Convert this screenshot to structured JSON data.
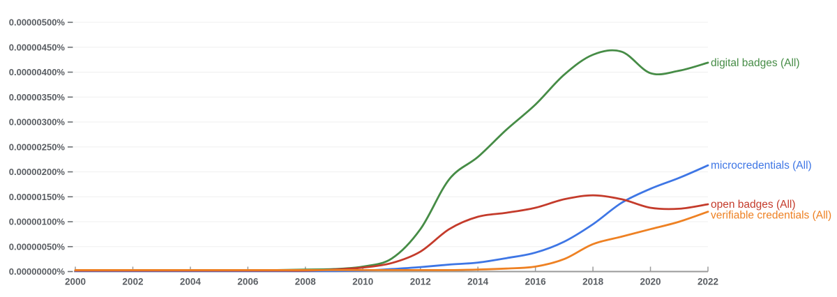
{
  "chart_data": {
    "type": "line",
    "title": "",
    "xlabel": "",
    "ylabel": "",
    "grid": true,
    "legend_position": "right-of-line-ends",
    "x": [
      2000,
      2001,
      2002,
      2003,
      2004,
      2005,
      2006,
      2007,
      2008,
      2009,
      2010,
      2011,
      2012,
      2013,
      2014,
      2015,
      2016,
      2017,
      2018,
      2019,
      2020,
      2021,
      2022
    ],
    "x_tick_labels": [
      "2000",
      "2002",
      "2004",
      "2006",
      "2008",
      "2010",
      "2012",
      "2014",
      "2016",
      "2018",
      "2020",
      "2022"
    ],
    "x_tick_years": [
      2000,
      2002,
      2004,
      2006,
      2008,
      2010,
      2012,
      2014,
      2016,
      2018,
      2020,
      2022
    ],
    "xlim": [
      2000,
      2022
    ],
    "ylim": [
      0,
      5e-06
    ],
    "y_tick_values": [
      0,
      5e-07,
      1e-06,
      1.5e-06,
      2e-06,
      2.5e-06,
      3e-06,
      3.5e-06,
      4e-06,
      4.5e-06,
      5e-06
    ],
    "y_tick_labels": [
      "0.00000000%",
      "0.00000050%",
      "0.00000100%",
      "0.00000150%",
      "0.00000200%",
      "0.00000250%",
      "0.00000300%",
      "0.00000350%",
      "0.00000400%",
      "0.00000450%",
      "0.00000500%"
    ],
    "y_unit": "percent",
    "series": [
      {
        "name": "digital badges (All)",
        "color": "#468c46",
        "values": [
          2e-08,
          2e-08,
          2e-08,
          2e-08,
          2e-08,
          2e-08,
          2e-08,
          3e-08,
          4e-08,
          5e-08,
          1e-07,
          2.6e-07,
          8.5e-07,
          1.85e-06,
          2.3e-06,
          2.85e-06,
          3.35e-06,
          3.95e-06,
          4.35e-06,
          4.41e-06,
          3.98e-06,
          4.03e-06,
          4.19e-06
        ]
      },
      {
        "name": "microcredentials (All)",
        "color": "#3e76e5",
        "values": [
          1e-08,
          1e-08,
          1e-08,
          1e-08,
          1e-08,
          1e-08,
          1e-08,
          1e-08,
          1e-08,
          1e-08,
          2e-08,
          5e-08,
          9e-08,
          1.4e-07,
          1.8e-07,
          2.7e-07,
          3.8e-07,
          6e-07,
          9.5e-07,
          1.38e-06,
          1.66e-06,
          1.88e-06,
          2.13e-06
        ]
      },
      {
        "name": "open badges (All)",
        "color": "#c43b2b",
        "values": [
          2e-08,
          2e-08,
          2e-08,
          2e-08,
          2e-08,
          2e-08,
          2e-08,
          2e-08,
          2e-08,
          4e-08,
          8e-08,
          1.7e-07,
          4e-07,
          8.5e-07,
          1.1e-06,
          1.18e-06,
          1.28e-06,
          1.45e-06,
          1.53e-06,
          1.45e-06,
          1.28e-06,
          1.26e-06,
          1.35e-06
        ]
      },
      {
        "name": "verifiable credentials (All)",
        "color": "#ee8123",
        "values": [
          3e-08,
          3e-08,
          3e-08,
          3e-08,
          3e-08,
          3e-08,
          3e-08,
          3e-08,
          3e-08,
          3e-08,
          3e-08,
          3e-08,
          3e-08,
          3e-08,
          4e-08,
          6e-08,
          1e-07,
          2.5e-07,
          5.5e-07,
          7e-07,
          8.5e-07,
          1e-06,
          1.2e-06
        ]
      }
    ]
  }
}
